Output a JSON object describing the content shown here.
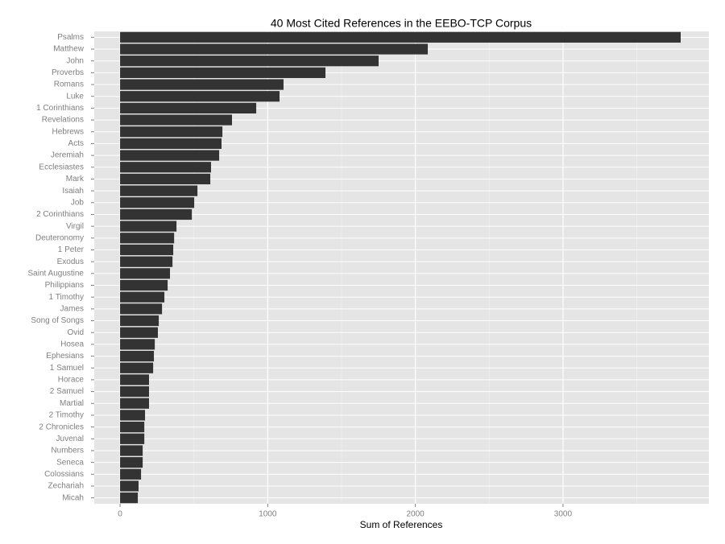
{
  "chart_data": {
    "type": "hbar",
    "title": "40 Most Cited References in the EEBO-TCP Corpus",
    "x_label": "Sum of References",
    "categories": [
      "Psalms",
      "Matthew",
      "John",
      "Proverbs",
      "Romans",
      "Luke",
      "1 Corinthians",
      "Revelations",
      "Hebrews",
      "Acts",
      "Jeremiah",
      "Ecclesiastes",
      "Mark",
      "Isaiah",
      "Job",
      "2 Corinthians",
      "Virgil",
      "Deuteronomy",
      "1 Peter",
      "Exodus",
      "Saint Augustine",
      "Philippians",
      "1 Timothy",
      "James",
      "Song of Songs",
      "Ovid",
      "Hosea",
      "Ephesians",
      "1 Samuel",
      "Horace",
      "2 Samuel",
      "Martial",
      "2 Timothy",
      "2 Chronicles",
      "Juvenal",
      "Numbers",
      "Seneca",
      "Colossians",
      "Zechariah",
      "Micah"
    ],
    "values": [
      3797,
      2084,
      1751,
      1391,
      1107,
      1080,
      922,
      758,
      693,
      687,
      671,
      616,
      611,
      524,
      502,
      486,
      382,
      366,
      360,
      355,
      338,
      322,
      300,
      284,
      262,
      256,
      235,
      229,
      224,
      196,
      196,
      196,
      169,
      164,
      164,
      153,
      153,
      142,
      125,
      120
    ],
    "color": "#333333",
    "xlim": [
      -175,
      3988
    ],
    "xticks": [
      0,
      1000,
      2000,
      3000
    ],
    "grid": true
  }
}
